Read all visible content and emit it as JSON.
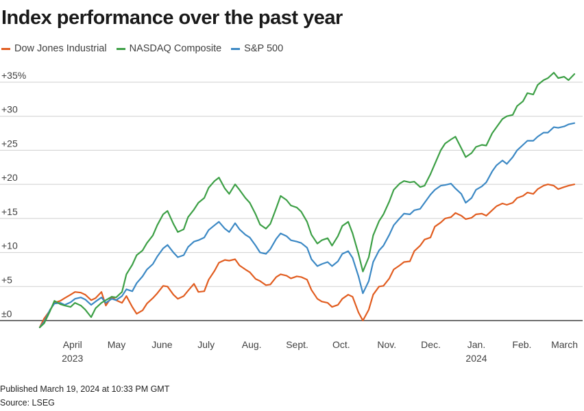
{
  "title": "Index performance over the past year",
  "footer": {
    "published": "Published March 19, 2024 at 10:33 PM GMT",
    "source": "Source: LSEG"
  },
  "chart_data": {
    "type": "line",
    "title": "Index performance over the past year",
    "xlabel": "",
    "ylabel": "",
    "ylim": [
      -2,
      37
    ],
    "grid": true,
    "legend_placement": "top-left",
    "y_ticks": [
      {
        "value": 35,
        "label": "+35%"
      },
      {
        "value": 30,
        "label": "+30"
      },
      {
        "value": 25,
        "label": "+25"
      },
      {
        "value": 20,
        "label": "+20"
      },
      {
        "value": 15,
        "label": "+15"
      },
      {
        "value": 10,
        "label": "+10"
      },
      {
        "value": 5,
        "label": "+5"
      },
      {
        "value": 0,
        "label": "±0"
      }
    ],
    "x_ticks": [
      {
        "date": "2023-04-01",
        "label": "April",
        "sublabel": "2023"
      },
      {
        "date": "2023-05-01",
        "label": "May",
        "sublabel": ""
      },
      {
        "date": "2023-06-01",
        "label": "June",
        "sublabel": ""
      },
      {
        "date": "2023-07-01",
        "label": "July",
        "sublabel": ""
      },
      {
        "date": "2023-08-01",
        "label": "Aug.",
        "sublabel": ""
      },
      {
        "date": "2023-09-01",
        "label": "Sept.",
        "sublabel": ""
      },
      {
        "date": "2023-10-01",
        "label": "Oct.",
        "sublabel": ""
      },
      {
        "date": "2023-11-01",
        "label": "Nov.",
        "sublabel": ""
      },
      {
        "date": "2023-12-01",
        "label": "Dec.",
        "sublabel": ""
      },
      {
        "date": "2024-01-01",
        "label": "Jan.",
        "sublabel": "2024"
      },
      {
        "date": "2024-02-01",
        "label": "Feb.",
        "sublabel": ""
      },
      {
        "date": "2024-03-01",
        "label": "March",
        "sublabel": ""
      }
    ],
    "x": [
      "2023-03-20",
      "2023-03-23",
      "2023-03-27",
      "2023-03-30",
      "2023-04-03",
      "2023-04-06",
      "2023-04-10",
      "2023-04-13",
      "2023-04-17",
      "2023-04-20",
      "2023-04-24",
      "2023-04-27",
      "2023-05-01",
      "2023-05-04",
      "2023-05-08",
      "2023-05-11",
      "2023-05-15",
      "2023-05-18",
      "2023-05-22",
      "2023-05-25",
      "2023-05-29",
      "2023-06-01",
      "2023-06-05",
      "2023-06-08",
      "2023-06-12",
      "2023-06-15",
      "2023-06-19",
      "2023-06-22",
      "2023-06-26",
      "2023-06-29",
      "2023-07-03",
      "2023-07-06",
      "2023-07-10",
      "2023-07-13",
      "2023-07-17",
      "2023-07-20",
      "2023-07-24",
      "2023-07-27",
      "2023-07-31",
      "2023-08-03",
      "2023-08-07",
      "2023-08-10",
      "2023-08-14",
      "2023-08-17",
      "2023-08-21",
      "2023-08-24",
      "2023-08-28",
      "2023-08-31",
      "2023-09-04",
      "2023-09-07",
      "2023-09-11",
      "2023-09-14",
      "2023-09-18",
      "2023-09-21",
      "2023-09-25",
      "2023-09-28",
      "2023-10-02",
      "2023-10-05",
      "2023-10-09",
      "2023-10-12",
      "2023-10-16",
      "2023-10-19",
      "2023-10-23",
      "2023-10-26",
      "2023-10-30",
      "2023-11-02",
      "2023-11-06",
      "2023-11-09",
      "2023-11-13",
      "2023-11-16",
      "2023-11-20",
      "2023-11-23",
      "2023-11-27",
      "2023-11-30",
      "2023-12-04",
      "2023-12-07",
      "2023-12-11",
      "2023-12-14",
      "2023-12-18",
      "2023-12-21",
      "2023-12-25",
      "2023-12-28",
      "2024-01-01",
      "2024-01-04",
      "2024-01-08",
      "2024-01-11",
      "2024-01-15",
      "2024-01-18",
      "2024-01-22",
      "2024-01-25",
      "2024-01-29",
      "2024-02-01",
      "2024-02-05",
      "2024-02-08",
      "2024-02-12",
      "2024-02-15",
      "2024-02-19",
      "2024-02-22",
      "2024-02-26",
      "2024-02-29",
      "2024-03-04",
      "2024-03-07",
      "2024-03-11",
      "2024-03-14",
      "2024-03-18"
    ],
    "series": [
      {
        "name": "Dow Jones Industrial",
        "color": "#e15c1f",
        "values": [
          -1.0,
          0.3,
          1.5,
          2.6,
          2.9,
          3.3,
          3.8,
          4.2,
          4.1,
          3.8,
          3.0,
          3.3,
          4.2,
          2.2,
          3.5,
          3.0,
          2.6,
          3.6,
          2.0,
          1.0,
          1.5,
          2.5,
          3.3,
          4.0,
          5.1,
          5.0,
          3.8,
          3.2,
          3.6,
          4.4,
          5.4,
          4.2,
          4.3,
          6.0,
          7.3,
          8.5,
          8.9,
          8.8,
          9.0,
          8.1,
          7.5,
          7.1,
          6.1,
          5.8,
          5.2,
          5.3,
          6.4,
          6.8,
          6.6,
          6.2,
          6.5,
          6.4,
          6.0,
          4.5,
          3.2,
          2.8,
          2.6,
          2.0,
          2.3,
          3.2,
          3.8,
          3.5,
          1.2,
          0.0,
          1.6,
          3.8,
          5.0,
          5.1,
          6.2,
          7.5,
          8.1,
          8.6,
          8.7,
          10.2,
          11.0,
          11.9,
          12.2,
          13.8,
          14.4,
          15.0,
          15.2,
          15.8,
          15.4,
          14.9,
          15.1,
          15.6,
          15.7,
          15.4,
          16.2,
          16.8,
          17.2,
          17.0,
          17.3,
          18.0,
          18.3,
          18.8,
          18.6,
          19.3,
          19.8,
          20.0,
          19.8,
          19.3,
          19.6,
          19.8,
          20.0
        ]
      },
      {
        "name": "NASDAQ Composite",
        "color": "#3c9f45",
        "values": [
          -1.0,
          -0.4,
          1.4,
          2.9,
          2.4,
          2.2,
          2.0,
          2.6,
          2.2,
          1.6,
          0.5,
          1.8,
          2.6,
          3.0,
          3.5,
          3.4,
          4.2,
          6.8,
          8.2,
          9.6,
          10.3,
          11.4,
          12.5,
          14.0,
          15.6,
          16.1,
          14.2,
          13.0,
          13.4,
          15.2,
          16.3,
          17.3,
          18.0,
          19.5,
          20.5,
          21.0,
          19.4,
          18.6,
          20.0,
          19.2,
          18.0,
          17.3,
          15.6,
          14.1,
          13.5,
          14.2,
          16.5,
          18.3,
          17.7,
          16.9,
          16.6,
          16.0,
          14.5,
          12.6,
          11.3,
          11.8,
          12.1,
          11.0,
          12.4,
          13.9,
          14.5,
          12.8,
          9.8,
          7.2,
          9.3,
          12.5,
          14.6,
          15.6,
          17.5,
          19.2,
          20.1,
          20.5,
          20.3,
          20.4,
          19.6,
          19.8,
          21.5,
          23.0,
          25.0,
          26.0,
          26.6,
          27.0,
          25.3,
          24.0,
          24.6,
          25.5,
          25.8,
          25.7,
          27.5,
          28.4,
          29.6,
          30.0,
          30.2,
          31.5,
          32.2,
          33.4,
          33.2,
          34.6,
          35.3,
          35.6,
          36.4,
          35.6,
          35.8,
          35.3,
          36.2
        ]
      },
      {
        "name": "S&P 500",
        "color": "#3b88c4",
        "values": [
          -1.0,
          -0.2,
          1.6,
          2.5,
          2.6,
          2.3,
          2.7,
          3.2,
          3.4,
          3.1,
          2.3,
          2.8,
          3.4,
          2.6,
          3.2,
          3.0,
          3.6,
          4.6,
          4.3,
          5.5,
          6.5,
          7.5,
          8.3,
          9.4,
          10.6,
          11.1,
          10.0,
          9.3,
          9.6,
          10.8,
          11.6,
          11.8,
          12.2,
          13.3,
          14.0,
          14.5,
          13.5,
          13.0,
          14.3,
          13.4,
          12.6,
          12.2,
          11.0,
          10.0,
          9.8,
          10.5,
          12.0,
          12.8,
          12.4,
          11.8,
          11.6,
          11.4,
          10.7,
          9.0,
          8.0,
          8.3,
          8.6,
          8.0,
          8.7,
          9.8,
          10.2,
          9.2,
          6.5,
          4.0,
          5.8,
          8.6,
          10.3,
          11.0,
          12.6,
          14.0,
          15.0,
          15.7,
          15.6,
          16.2,
          16.4,
          17.3,
          18.5,
          19.2,
          19.8,
          19.9,
          20.1,
          19.4,
          18.6,
          17.3,
          18.0,
          19.2,
          19.7,
          20.3,
          21.9,
          22.8,
          23.5,
          23.0,
          24.0,
          25.0,
          25.8,
          26.4,
          26.4,
          27.0,
          27.6,
          27.6,
          28.4,
          28.3,
          28.5,
          28.8,
          29.0
        ]
      }
    ]
  }
}
